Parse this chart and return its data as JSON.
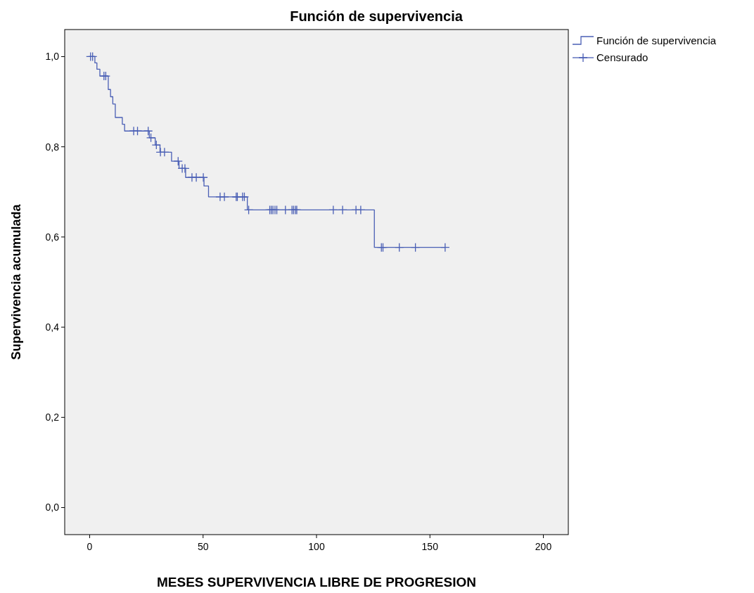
{
  "chart_data": {
    "type": "step",
    "title": "Función de supervivencia",
    "xlabel": "MESES SUPERVIVENCIA LIBRE DE PROGRESION",
    "ylabel": "Supervivencia acumulada",
    "xlim": [
      -11,
      211
    ],
    "xticks": [
      0,
      50,
      100,
      150,
      200
    ],
    "ylim": [
      -0.06,
      1.06
    ],
    "yticks": [
      {
        "value": 0,
        "label": "0,0"
      },
      {
        "value": 0.2,
        "label": "0,2"
      },
      {
        "value": 0.4,
        "label": "0,4"
      },
      {
        "value": 0.6,
        "label": "0,6"
      },
      {
        "value": 0.8,
        "label": "0,8"
      },
      {
        "value": 1,
        "label": "1,0"
      }
    ],
    "legend": "top right",
    "series": [
      {
        "name": "Función de supervivencia",
        "color": "#4a5fb5",
        "x": [
          0,
          2.3,
          3.2,
          4.5,
          8.2,
          9.2,
          10.2,
          11.3,
          14.4,
          15.4,
          26.3,
          28.9,
          31.0,
          36.1,
          39.4,
          42.3,
          50.4,
          52.4,
          69.5,
          125.5,
          156.7
        ],
        "values": [
          1.0,
          0.986,
          0.972,
          0.957,
          0.927,
          0.911,
          0.895,
          0.865,
          0.85,
          0.835,
          0.82,
          0.804,
          0.788,
          0.768,
          0.752,
          0.732,
          0.713,
          0.689,
          0.66,
          0.577,
          0.577
        ]
      },
      {
        "name": "Censurado",
        "type": "scatter",
        "marker": "cross",
        "color": "#4a5fb5",
        "x": [
          0.4,
          1.3,
          6.3,
          7.1,
          19.4,
          21.1,
          25.8,
          27.0,
          29.4,
          31.2,
          33.0,
          39.0,
          40.8,
          42.0,
          45.1,
          47.0,
          50.1,
          57.5,
          59.4,
          64.6,
          65.1,
          67.4,
          68.2,
          70.1,
          79.4,
          80.1,
          80.8,
          81.7,
          82.5,
          86.3,
          89.2,
          89.9,
          90.7,
          91.3,
          107.4,
          111.5,
          117.4,
          119.5,
          128.6,
          129.3,
          136.5,
          143.6,
          156.7
        ],
        "values": [
          1.0,
          1.0,
          0.957,
          0.957,
          0.835,
          0.835,
          0.835,
          0.82,
          0.804,
          0.788,
          0.788,
          0.768,
          0.752,
          0.752,
          0.732,
          0.732,
          0.732,
          0.689,
          0.689,
          0.689,
          0.689,
          0.689,
          0.689,
          0.66,
          0.66,
          0.66,
          0.66,
          0.66,
          0.66,
          0.66,
          0.66,
          0.66,
          0.66,
          0.66,
          0.66,
          0.66,
          0.66,
          0.66,
          0.577,
          0.577,
          0.577,
          0.577,
          0.577
        ]
      }
    ]
  }
}
